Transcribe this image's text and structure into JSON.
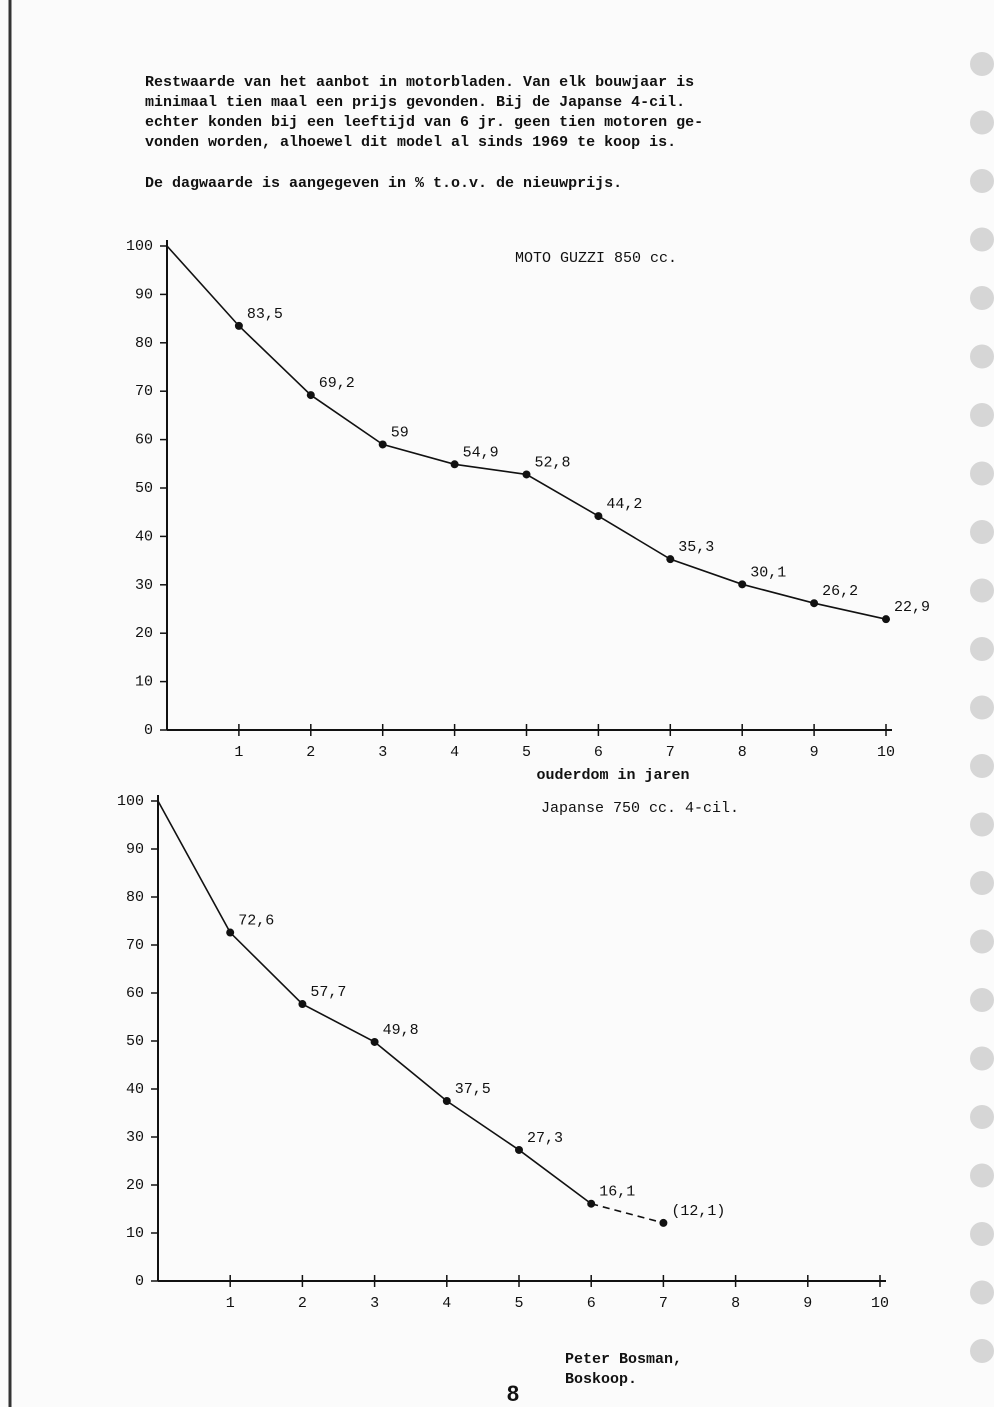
{
  "header": {
    "intro": [
      "Restwaarde van het aanbot in motorbladen. Van elk bouwjaar is",
      "minimaal tien maal een prijs gevonden. Bij de Japanse 4-cil.",
      "echter konden bij een leeftijd van 6 jr. geen tien motoren ge-",
      "vonden worden, alhoewel dit model al sinds 1969 te koop is."
    ],
    "note": "De dagwaarde is aangegeven in % t.o.v. de nieuwprijs."
  },
  "chart_data": [
    {
      "type": "line",
      "title": "MOTO GUZZI 850 cc.",
      "x_label": "ouderdom in jaren",
      "x": [
        0,
        1,
        2,
        3,
        4,
        5,
        6,
        7,
        8,
        9,
        10
      ],
      "values": [
        100,
        83.5,
        69.2,
        59,
        54.9,
        52.8,
        44.2,
        35.3,
        30.1,
        26.2,
        22.9
      ],
      "value_labels": [
        null,
        "83,5",
        "69,2",
        "59",
        "54,9",
        "52,8",
        "44,2",
        "35,3",
        "30,1",
        "26,2",
        "22,9"
      ],
      "xlim": [
        0,
        10
      ],
      "ylim": [
        0,
        100
      ],
      "xticks": [
        1,
        2,
        3,
        4,
        5,
        6,
        7,
        8,
        9,
        10
      ],
      "yticks": [
        0,
        10,
        20,
        30,
        40,
        50,
        60,
        70,
        80,
        90,
        100
      ],
      "color": "#111111",
      "dashed_last_segment": false
    },
    {
      "type": "line",
      "title": "Japanse 750 cc. 4-cil.",
      "x": [
        0,
        1,
        2,
        3,
        4,
        5,
        6,
        7
      ],
      "values": [
        100,
        72.6,
        57.7,
        49.8,
        37.5,
        27.3,
        16.1,
        12.1
      ],
      "value_labels": [
        null,
        "72,6",
        "57,7",
        "49,8",
        "37,5",
        "27,3",
        "16,1",
        "(12,1)"
      ],
      "xlim": [
        0,
        10
      ],
      "ylim": [
        0,
        100
      ],
      "xticks": [
        1,
        2,
        3,
        4,
        5,
        6,
        7,
        8,
        9,
        10
      ],
      "yticks": [
        0,
        10,
        20,
        30,
        40,
        50,
        60,
        70,
        80,
        90,
        100
      ],
      "color": "#111111",
      "dashed_last_segment": true
    }
  ],
  "footer": {
    "author": [
      "Peter Bosman,",
      "Boskoop."
    ],
    "page_number": "8"
  }
}
